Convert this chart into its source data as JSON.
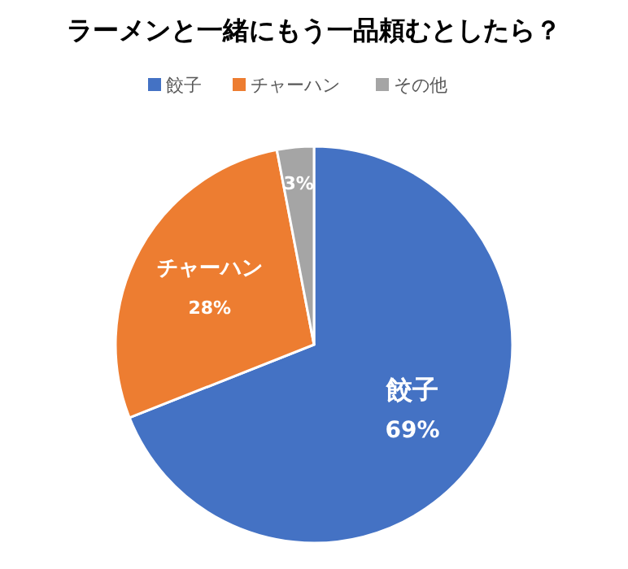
{
  "chart_data": {
    "type": "pie",
    "title": "ラーメンと一緒にもう一品頼むとしたら？",
    "categories": [
      "餃子",
      "チャーハン",
      "その他"
    ],
    "values": [
      69,
      28,
      3
    ],
    "colors": [
      "#4472c4",
      "#ed7d31",
      "#a5a5a5"
    ],
    "value_labels": [
      "69%",
      "28%",
      "3%"
    ],
    "legend": "top"
  }
}
